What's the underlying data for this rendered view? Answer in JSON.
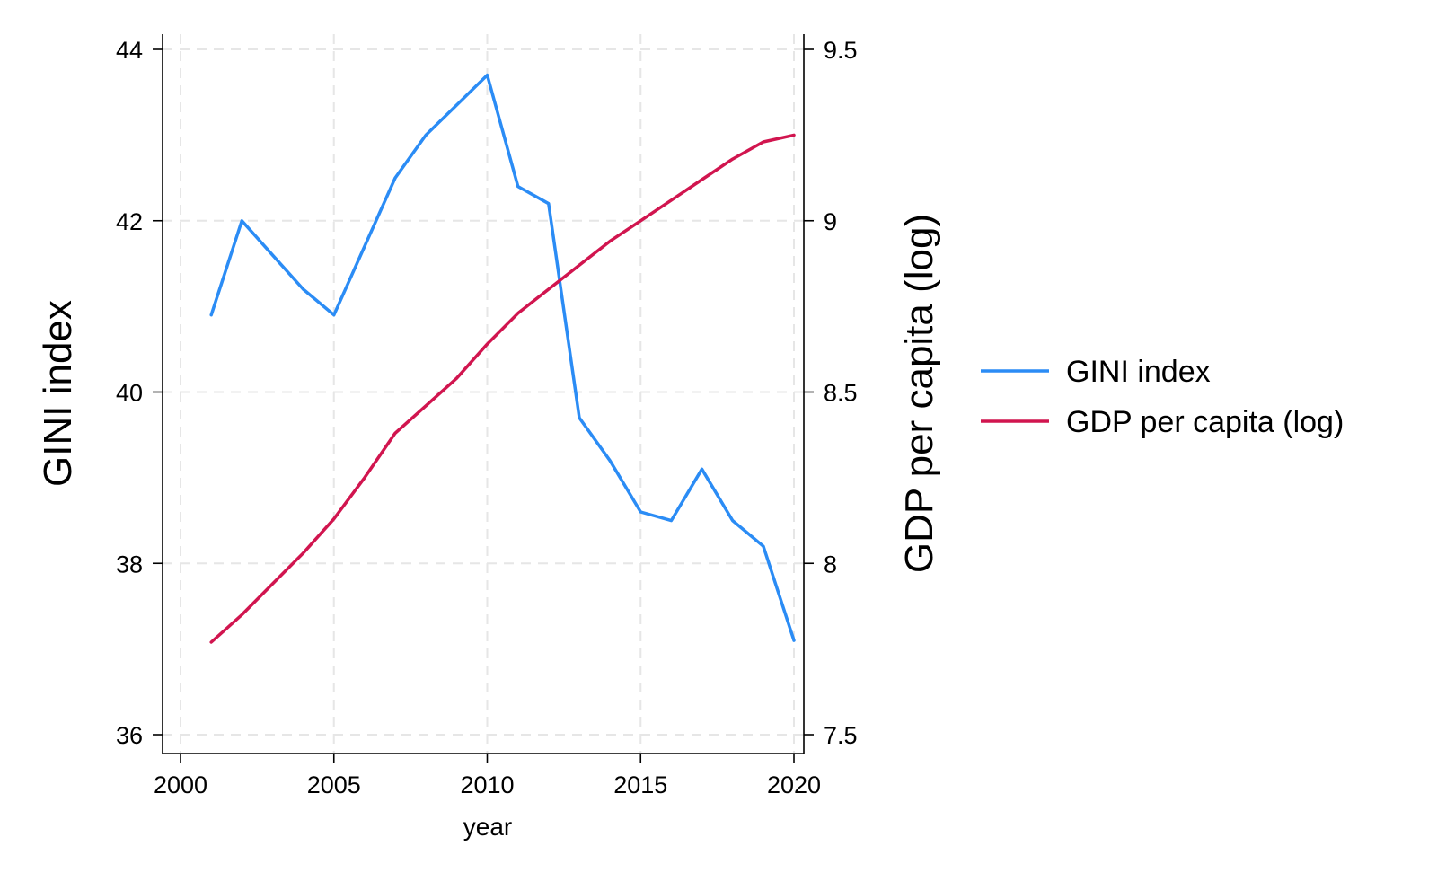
{
  "chart_data": {
    "type": "line",
    "xlabel": "year",
    "ylabel_left": "GINI index",
    "ylabel_right": "GDP per capita (log)",
    "grid": true,
    "legend_position": "right",
    "x_ticks": [
      "2000",
      "2005",
      "2010",
      "2015",
      "2020"
    ],
    "y_left_ticks": [
      "36",
      "38",
      "40",
      "42",
      "44"
    ],
    "y_right_ticks": [
      "7.5",
      "8",
      "8.5",
      "9",
      "9.5"
    ],
    "xlim": [
      2000,
      2020
    ],
    "ylim_left": [
      36,
      44
    ],
    "ylim_right": [
      7.5,
      9.5
    ],
    "x": [
      2001,
      2002,
      2003,
      2004,
      2005,
      2006,
      2007,
      2008,
      2009,
      2010,
      2011,
      2012,
      2013,
      2014,
      2015,
      2016,
      2017,
      2018,
      2019,
      2020
    ],
    "series": [
      {
        "name": "GINI index",
        "axis": "left",
        "color": "#2b8cf5",
        "values": [
          40.9,
          42.0,
          41.6,
          41.2,
          40.9,
          41.7,
          42.5,
          43.0,
          43.35,
          43.7,
          42.4,
          42.2,
          39.7,
          39.2,
          38.6,
          38.5,
          39.1,
          38.5,
          38.2,
          37.1
        ]
      },
      {
        "name": "GDP per capita (log)",
        "axis": "right",
        "color": "#d1154f",
        "values": [
          7.77,
          7.85,
          7.94,
          8.03,
          8.13,
          8.25,
          8.38,
          8.46,
          8.54,
          8.64,
          8.73,
          8.8,
          8.87,
          8.94,
          9.0,
          9.06,
          9.12,
          9.18,
          9.23,
          9.25
        ]
      }
    ]
  }
}
